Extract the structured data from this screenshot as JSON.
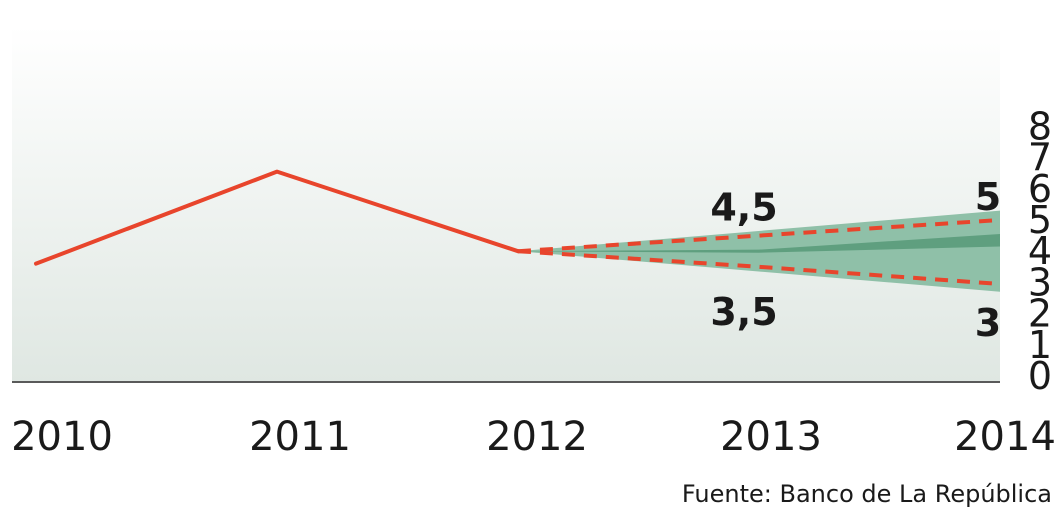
{
  "chart_data": {
    "type": "line",
    "x": [
      "2010",
      "2011",
      "2012",
      "2013",
      "2014"
    ],
    "ylim": [
      0,
      8
    ],
    "yticks": [
      "0",
      "1",
      "2",
      "3",
      "4",
      "5",
      "6",
      "7",
      "8"
    ],
    "grid": false,
    "series": [
      {
        "values": [
          3.6,
          6.55,
          4.0,
          null,
          null
        ],
        "color": "#e8452c"
      },
      {
        "values": [
          null,
          null,
          4.0,
          4.5,
          5.0
        ],
        "style": "dashed",
        "color": "#e8452c"
      },
      {
        "values": [
          null,
          null,
          4.0,
          3.5,
          2.95
        ],
        "style": "dashed",
        "color": "#e8452c"
      }
    ],
    "fan_outer": {
      "x": [
        2012,
        2014
      ],
      "lower": [
        4.0,
        2.7
      ],
      "upper": [
        4.0,
        5.3
      ],
      "color": "#8fc0a8"
    },
    "fan_inner": {
      "x": [
        2012,
        2013,
        2014
      ],
      "lower": [
        4.0,
        3.95,
        4.15
      ],
      "upper": [
        4.0,
        4.05,
        4.55
      ],
      "color": "#5f9f7f"
    },
    "data_labels": [
      {
        "text": "4,5",
        "x": 2013,
        "y": 4.5
      },
      {
        "text": "3,5",
        "x": 2013,
        "y": 3.5
      },
      {
        "text": "5",
        "x": 2014,
        "y": 5.0
      },
      {
        "text": "3",
        "x": 2014,
        "y": 2.95
      }
    ],
    "source": "Fuente: Banco de La República",
    "colors": {
      "line": "#e8452c",
      "background_top": "#ffffff",
      "background_bottom": "#dfe7e2",
      "axis": "#5a5a5a"
    }
  }
}
